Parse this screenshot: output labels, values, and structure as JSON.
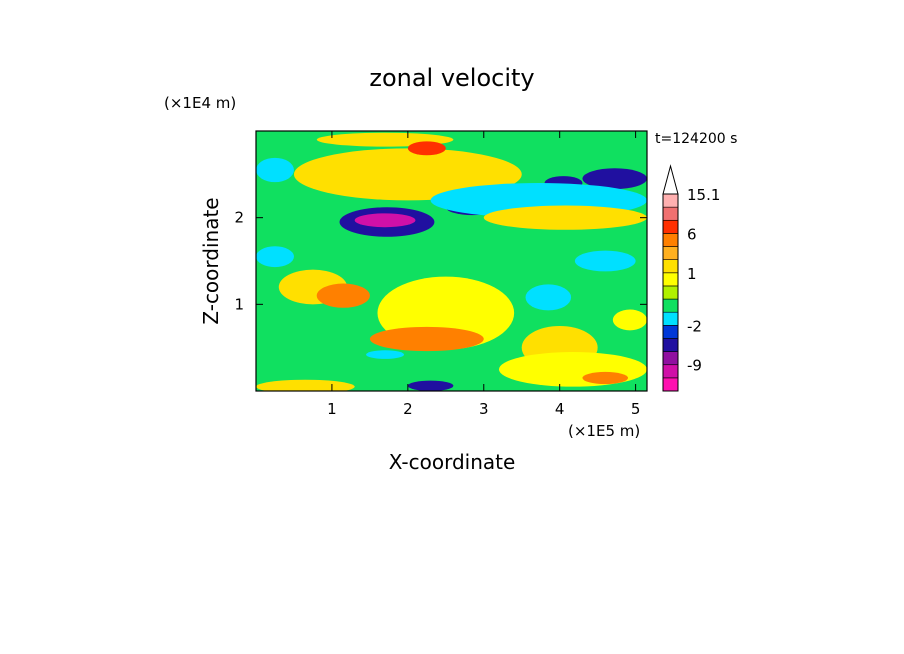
{
  "chart_data": {
    "type": "heatmap",
    "title": "zonal velocity",
    "xlabel": "X-coordinate",
    "ylabel": "Z-coordinate",
    "x_unit": "(×1E5 m)",
    "y_unit": "(×1E4 m)",
    "time_label": "t=124200 s",
    "xlim": [
      0,
      5.15
    ],
    "ylim": [
      0,
      3.0
    ],
    "x_ticks": [
      1,
      2,
      3,
      4,
      5
    ],
    "y_ticks": [
      1,
      2
    ],
    "colorbar": {
      "levels": [
        -15,
        -12,
        -9,
        -6,
        -4,
        -2,
        -1,
        0,
        0.5,
        1,
        2,
        4,
        6,
        9,
        12,
        15.1
      ],
      "colors": [
        "#ff10b0",
        "#d010a8",
        "#9010a0",
        "#2010a0",
        "#0038d8",
        "#00e0ff",
        "#10e060",
        "#b0f000",
        "#ffff00",
        "#ffe000",
        "#ffb020",
        "#ff8000",
        "#ff3000",
        "#f07070",
        "#ffb0b0"
      ],
      "labeled_levels": [
        15.1,
        6,
        1,
        -2,
        -9
      ],
      "extend_max": true,
      "extend_color": "#ffffff"
    },
    "bands": [
      {
        "z": 2.55,
        "x_start": 0.0,
        "x_end": 0.22,
        "half_thickness": 0.08,
        "value": -6
      },
      {
        "z": 2.55,
        "x_start": 0.0,
        "x_end": 0.5,
        "half_thickness": 0.14,
        "value": -2
      },
      {
        "z": 2.45,
        "x_start": 1.0,
        "x_end": 3.2,
        "half_thickness": 0.2,
        "value": 6
      },
      {
        "z": 2.5,
        "x_start": 0.5,
        "x_end": 3.5,
        "half_thickness": 0.3,
        "value": 1
      },
      {
        "z": 1.95,
        "x_start": 1.1,
        "x_end": 2.35,
        "half_thickness": 0.17,
        "value": -6
      },
      {
        "z": 1.97,
        "x_start": 1.3,
        "x_end": 2.1,
        "half_thickness": 0.08,
        "value": -12
      },
      {
        "z": 2.12,
        "x_start": 2.5,
        "x_end": 3.2,
        "half_thickness": 0.09,
        "value": -6
      },
      {
        "z": 2.4,
        "x_start": 3.8,
        "x_end": 4.3,
        "half_thickness": 0.08,
        "value": -6
      },
      {
        "z": 2.45,
        "x_start": 4.3,
        "x_end": 5.15,
        "half_thickness": 0.12,
        "value": -6
      },
      {
        "z": 2.2,
        "x_start": 2.3,
        "x_end": 5.15,
        "half_thickness": 0.2,
        "value": -2
      },
      {
        "z": 2.0,
        "x_start": 3.0,
        "x_end": 5.15,
        "half_thickness": 0.14,
        "value": 1
      },
      {
        "z": 1.5,
        "x_start": 4.2,
        "x_end": 5.0,
        "half_thickness": 0.12,
        "value": -2
      },
      {
        "z": 1.08,
        "x_start": 3.55,
        "x_end": 4.15,
        "half_thickness": 0.15,
        "value": -2
      },
      {
        "z": 1.2,
        "x_start": 0.3,
        "x_end": 1.2,
        "half_thickness": 0.2,
        "value": 1
      },
      {
        "z": 1.1,
        "x_start": 0.8,
        "x_end": 1.5,
        "half_thickness": 0.14,
        "value": 4
      },
      {
        "z": 0.9,
        "x_start": 1.6,
        "x_end": 3.4,
        "half_thickness": 0.42,
        "value": 0.5
      },
      {
        "z": 0.6,
        "x_start": 1.5,
        "x_end": 3.0,
        "half_thickness": 0.14,
        "value": 4
      },
      {
        "z": 0.5,
        "x_start": 3.5,
        "x_end": 4.5,
        "half_thickness": 0.25,
        "value": 1
      },
      {
        "z": 0.25,
        "x_start": 3.2,
        "x_end": 5.15,
        "half_thickness": 0.2,
        "value": 0.5
      },
      {
        "z": 0.06,
        "x_start": 2.0,
        "x_end": 2.6,
        "half_thickness": 0.06,
        "value": -6
      },
      {
        "z": 0.05,
        "x_start": 0.0,
        "x_end": 1.3,
        "half_thickness": 0.08,
        "value": 1
      },
      {
        "z": 0.42,
        "x_start": 1.45,
        "x_end": 1.95,
        "half_thickness": 0.05,
        "value": -2
      },
      {
        "z": 1.55,
        "x_start": 0.0,
        "x_end": 0.5,
        "half_thickness": 0.12,
        "value": -2
      },
      {
        "z": 2.9,
        "x_start": 0.8,
        "x_end": 2.6,
        "half_thickness": 0.08,
        "value": 1
      },
      {
        "z": 2.8,
        "x_start": 2.0,
        "x_end": 2.5,
        "half_thickness": 0.08,
        "value": 6
      },
      {
        "z": 0.82,
        "x_start": 4.7,
        "x_end": 5.15,
        "half_thickness": 0.12,
        "value": 0.5
      },
      {
        "z": 0.15,
        "x_start": 4.3,
        "x_end": 4.9,
        "half_thickness": 0.07,
        "value": 4
      }
    ]
  }
}
